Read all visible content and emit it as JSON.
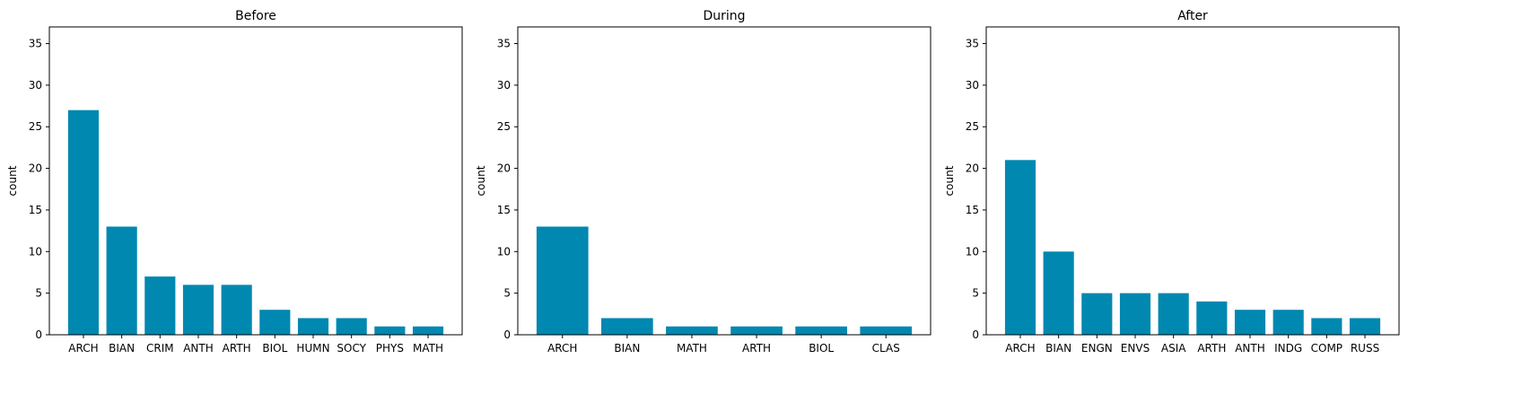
{
  "colors": {
    "bar": "#0088b0",
    "axis": "#000000",
    "background": "#ffffff"
  },
  "chart_data": [
    {
      "type": "bar",
      "title": "Before",
      "xlabel": "",
      "ylabel": "count",
      "ylim": [
        0,
        37
      ],
      "yticks": [
        0,
        5,
        10,
        15,
        20,
        25,
        30,
        35
      ],
      "grid": false,
      "categories": [
        "ARCH",
        "BIAN",
        "CRIM",
        "ANTH",
        "ARTH",
        "BIOL",
        "HUMN",
        "SOCY",
        "PHYS",
        "MATH"
      ],
      "values": [
        27,
        13,
        7,
        6,
        6,
        3,
        2,
        2,
        1,
        1
      ]
    },
    {
      "type": "bar",
      "title": "During",
      "xlabel": "",
      "ylabel": "count",
      "ylim": [
        0,
        37
      ],
      "yticks": [
        0,
        5,
        10,
        15,
        20,
        25,
        30,
        35
      ],
      "grid": false,
      "categories": [
        "ARCH",
        "BIAN",
        "MATH",
        "ARTH",
        "BIOL",
        "CLAS"
      ],
      "values": [
        13,
        2,
        1,
        1,
        1,
        1
      ]
    },
    {
      "type": "bar",
      "title": "After",
      "xlabel": "",
      "ylabel": "count",
      "ylim": [
        0,
        37
      ],
      "yticks": [
        0,
        5,
        10,
        15,
        20,
        25,
        30,
        35
      ],
      "grid": false,
      "categories": [
        "ARCH",
        "BIAN",
        "ENGN",
        "ENVS",
        "ASIA",
        "ARTH",
        "ANTH",
        "INDG",
        "COMP",
        "RUSS"
      ],
      "values": [
        21,
        10,
        5,
        5,
        5,
        4,
        3,
        3,
        2,
        2
      ]
    }
  ]
}
